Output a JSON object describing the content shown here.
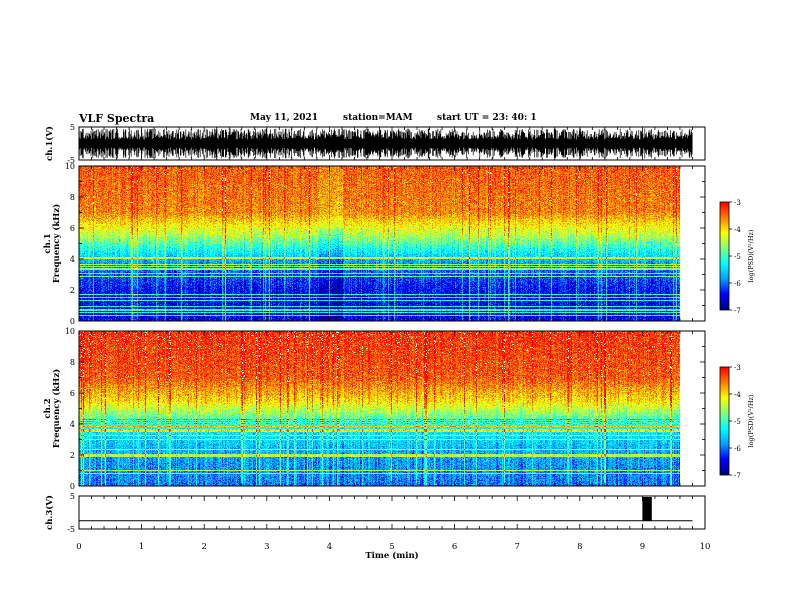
{
  "header": {
    "title": "VLF Spectra",
    "date": "May 11, 2021",
    "station": "station=MAM",
    "start": "start  UT =   23: 40: 1"
  },
  "colors": {
    "trace": "#000000",
    "colormap": [
      "#00007f",
      "#0000ff",
      "#00a0ff",
      "#00ffff",
      "#7fff7f",
      "#ffff00",
      "#ff7f00",
      "#ff0000",
      "#ffffff"
    ]
  },
  "chart_data": [
    {
      "type": "line",
      "panel": "ch1-waveform",
      "ylabel": "ch.1(V)",
      "ylim": [
        -5,
        5
      ],
      "yticks": [
        "5",
        "-5"
      ],
      "xlim": [
        0,
        10
      ]
    },
    {
      "type": "heatmap",
      "panel": "ch1-spectrogram",
      "ylabel": "ch.1\nFrequency (kHz)",
      "ylim": [
        0,
        10
      ],
      "yticks": [
        "0",
        "2",
        "4",
        "6",
        "8",
        "10"
      ],
      "xlim": [
        0,
        10
      ],
      "data_xmax": 9.8,
      "colorbar": {
        "label": "log(PSD)(V²/Hz)",
        "range": [
          -7,
          -3
        ],
        "ticks": [
          "-3",
          "-4",
          "-5",
          "-6",
          "-7"
        ]
      },
      "profile": [
        {
          "f": 0,
          "psd": -6.5
        },
        {
          "f": 2,
          "psd": -6.4
        },
        {
          "f": 3.5,
          "psd": -6.0
        },
        {
          "f": 4.5,
          "psd": -5.3
        },
        {
          "f": 5.5,
          "psd": -4.5
        },
        {
          "f": 7,
          "psd": -3.6
        },
        {
          "f": 10,
          "psd": -3.4
        }
      ],
      "quiet_interval_min": [
        3.9,
        4.3
      ]
    },
    {
      "type": "heatmap",
      "panel": "ch2-spectrogram",
      "ylabel": "ch.2\nFrequency (kHz)",
      "ylim": [
        0,
        10
      ],
      "yticks": [
        "0",
        "2",
        "4",
        "6",
        "8",
        "10"
      ],
      "xlim": [
        0,
        10
      ],
      "data_xmax": 9.8,
      "colorbar": {
        "label": "log(PSD)(V²/Hz)",
        "range": [
          -7,
          -3
        ],
        "ticks": [
          "-3",
          "-4",
          "-5",
          "-6",
          "-7"
        ]
      },
      "profile": [
        {
          "f": 0,
          "psd": -6.0
        },
        {
          "f": 2,
          "psd": -5.8
        },
        {
          "f": 3.5,
          "psd": -5.4
        },
        {
          "f": 4.5,
          "psd": -4.8
        },
        {
          "f": 5.5,
          "psd": -4.0
        },
        {
          "f": 7,
          "psd": -3.4
        },
        {
          "f": 10,
          "psd": -3.2
        }
      ]
    },
    {
      "type": "line",
      "panel": "ch3-waveform",
      "ylabel": "ch.3(V)",
      "ylim": [
        -5,
        5
      ],
      "yticks": [
        "5",
        "-5"
      ],
      "xlim": [
        0,
        10
      ],
      "baseline": -2.5,
      "pulse": {
        "x_start": 9.0,
        "x_end": 9.15,
        "y_top": 5
      }
    }
  ],
  "xaxis": {
    "label": "Time (min)",
    "ticks": [
      "0",
      "1",
      "2",
      "3",
      "4",
      "5",
      "6",
      "7",
      "8",
      "9",
      "10"
    ]
  }
}
